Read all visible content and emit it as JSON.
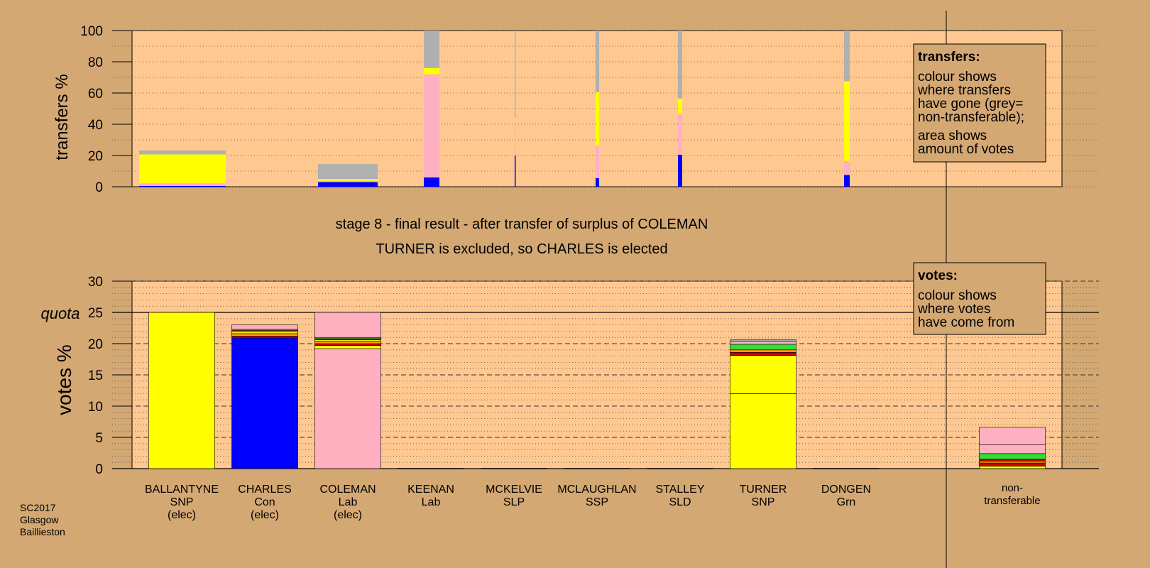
{
  "colors": {
    "background": "#d4a873",
    "panel": "#ffc890",
    "info_box": "#d4a873",
    "SNP": "#ffff00",
    "Con": "#0000ff",
    "Lab": "#ffb0c0",
    "LD": "#ffa000",
    "Grn": "#33dd33",
    "other": "#cc0000",
    "SSP": "#ff6020",
    "nontransferable": "#b0b0b0"
  },
  "transfers_legend": {
    "title": "transfers:",
    "lines": [
      "colour shows",
      "where transfers",
      "have gone (grey=",
      "non-transferable);"
    ],
    "lines2": [
      "area shows",
      "amount of votes"
    ]
  },
  "votes_legend": {
    "title": "votes:",
    "lines": [
      "colour shows",
      "where votes",
      "have come from"
    ]
  },
  "stage": {
    "line1": "stage 8 - final result - after transfer of surplus of COLEMAN",
    "line2": "TURNER is excluded, so CHARLES is elected"
  },
  "footer": {
    "line1": "SC2017",
    "line2": "Glasgow",
    "line3": "Baillieston"
  },
  "chart_data": [
    {
      "type": "bar",
      "stacked": true,
      "ylabel": "transfers %",
      "ylim": [
        0,
        100
      ],
      "yticks": [
        0,
        20,
        40,
        60,
        80,
        100
      ],
      "grid": "dotted",
      "columns": [
        {
          "name": "BALLANTYNE",
          "width": "wide",
          "segments": [
            {
              "color": "#0000ff",
              "value": 0.5
            },
            {
              "color": "#ffb0c0",
              "value": 1.7
            },
            {
              "color": "#ffff00",
              "value": 18.5
            },
            {
              "color": "#b0b0b0",
              "value": 2.5
            }
          ]
        },
        {
          "name": "CHARLES",
          "width": "wide",
          "segments": [
            {
              "color": "#0000ff",
              "value": 3
            },
            {
              "color": "#ffb0c0",
              "value": 0.8
            },
            {
              "color": "#ffff00",
              "value": 1.2
            },
            {
              "color": "#b0b0b0",
              "value": 9.5
            }
          ]
        },
        {
          "name": "COLEMAN",
          "width": "narrow",
          "segments": [
            {
              "color": "#0000ff",
              "value": 6
            },
            {
              "color": "#ffb0c0",
              "value": 66
            },
            {
              "color": "#ffff00",
              "value": 4
            },
            {
              "color": "#b0b0b0",
              "value": 24
            }
          ]
        },
        {
          "name": "KEENAN",
          "width": "hair",
          "segments": [
            {
              "color": "#0000ff",
              "value": 20
            },
            {
              "color": "#ffb0c0",
              "value": 22
            },
            {
              "color": "#ffff00",
              "value": 2
            },
            {
              "color": "#b0b0b0",
              "value": 56
            }
          ]
        },
        {
          "name": "MCKELVIE",
          "width": "thin",
          "segments": [
            {
              "color": "#0000ff",
              "value": 5.5
            },
            {
              "color": "#ffb0c0",
              "value": 21
            },
            {
              "color": "#ffff00",
              "value": 34
            },
            {
              "color": "#b0b0b0",
              "value": 39.5
            }
          ]
        },
        {
          "name": "MCLAUGHLAN",
          "width": "thin",
          "segments": [
            {
              "color": "#0000ff",
              "value": 20.5
            },
            {
              "color": "#ffb0c0",
              "value": 26
            },
            {
              "color": "#ffff00",
              "value": 10
            },
            {
              "color": "#b0b0b0",
              "value": 43.5
            }
          ]
        },
        {
          "name": "TURNER",
          "width": "thin",
          "segments": [
            {
              "color": "#0000ff",
              "value": 7.5
            },
            {
              "color": "#ffb0c0",
              "value": 9
            },
            {
              "color": "#ffff00",
              "value": 51
            },
            {
              "color": "#b0b0b0",
              "value": 32.5
            }
          ]
        }
      ]
    },
    {
      "type": "bar",
      "stacked": true,
      "ylabel": "votes %",
      "ylim": [
        0,
        30
      ],
      "yticks": [
        0,
        5,
        10,
        15,
        20,
        25,
        30
      ],
      "quota": 25,
      "quota_label": "quota",
      "grid": "dashed",
      "categories": [
        {
          "name": "BALLANTYNE",
          "party": "SNP",
          "status": "(elec)",
          "segments": [
            {
              "color": "#ffff00",
              "value": 25
            }
          ]
        },
        {
          "name": "CHARLES",
          "party": "Con",
          "status": "(elec)",
          "segments": [
            {
              "color": "#0000ff",
              "value": 20.9
            },
            {
              "color": "#cc0000",
              "value": 0.3
            },
            {
              "color": "#ffa000",
              "value": 0.4
            },
            {
              "color": "#ffff00",
              "value": 0.3
            },
            {
              "color": "#33dd33",
              "value": 0.2
            },
            {
              "color": "#ff6020",
              "value": 0.2
            },
            {
              "color": "#ffb0c0",
              "value": 0.7
            }
          ]
        },
        {
          "name": "COLEMAN",
          "party": "Lab",
          "status": "(elec)",
          "segments": [
            {
              "color": "#ffb0c0",
              "value": 19.2
            },
            {
              "color": "#ffff00",
              "value": 0.5
            },
            {
              "color": "#cc0000",
              "value": 0.3
            },
            {
              "color": "#ffa000",
              "value": 0.4
            },
            {
              "color": "#ffff00",
              "value": 0.2
            },
            {
              "color": "#cc0000",
              "value": 0.2
            },
            {
              "color": "#33dd33",
              "value": 0.2
            },
            {
              "color": "#ffb0c0",
              "value": 4.0
            }
          ]
        },
        {
          "name": "KEENAN",
          "party": "Lab",
          "status": "",
          "segments": []
        },
        {
          "name": "MCKELVIE",
          "party": "SLP",
          "status": "",
          "segments": []
        },
        {
          "name": "MCLAUGHLAN",
          "party": "SSP",
          "status": "",
          "segments": []
        },
        {
          "name": "STALLEY",
          "party": "SLD",
          "status": "",
          "segments": []
        },
        {
          "name": "TURNER",
          "party": "SNP",
          "status": "",
          "segments": [
            {
              "color": "#ffff00",
              "value": 12
            },
            {
              "color": "#ffff00",
              "value": 6.1
            },
            {
              "color": "#cc0000",
              "value": 0.5
            },
            {
              "color": "#ffa000",
              "value": 0.4
            },
            {
              "color": "#33dd33",
              "value": 0.9
            },
            {
              "color": "#ffb0c0",
              "value": 0.5
            },
            {
              "color": "#b0b0b0",
              "value": 0.2
            }
          ]
        },
        {
          "name": "DONGEN",
          "party": "Grn",
          "status": "",
          "segments": []
        },
        {
          "name": "non-transferable",
          "label_lines": [
            "non-",
            "transferable"
          ],
          "segments": [
            {
              "color": "#ffff00",
              "value": 0.4
            },
            {
              "color": "#cc0000",
              "value": 0.5
            },
            {
              "color": "#ffa000",
              "value": 0.3
            },
            {
              "color": "#cc0000",
              "value": 0.3
            },
            {
              "color": "#33dd33",
              "value": 0.9
            },
            {
              "color": "#ffb0c0",
              "value": 1.4
            },
            {
              "color": "#ffb0c0",
              "value": 2.8
            }
          ]
        }
      ]
    }
  ]
}
